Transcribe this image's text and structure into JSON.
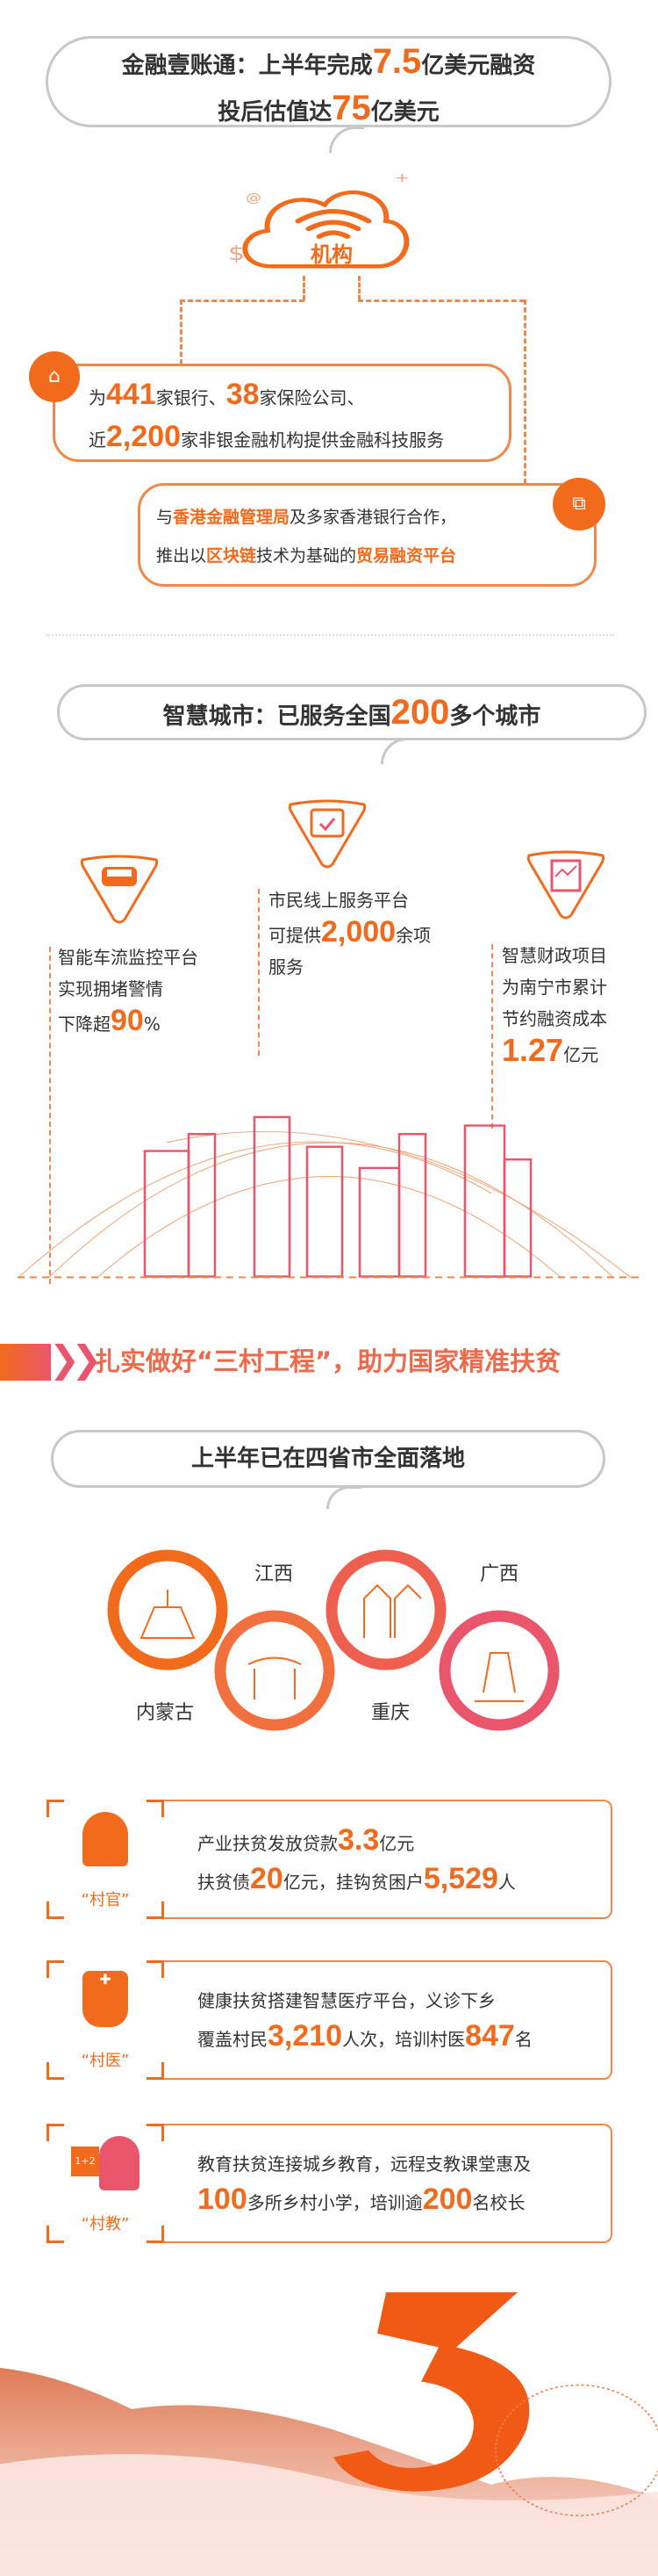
{
  "fintech": {
    "headline": {
      "prefix": "金融壹账通：上半年完成",
      "num1": "7.5",
      "mid": "亿美元融资",
      "line2_prefix": "投后估值达",
      "num2": "75",
      "suffix": "亿美元"
    },
    "cloud_label": "机构",
    "box1": {
      "a": "为",
      "n1": "441",
      "b": "家银行、",
      "n2": "38",
      "c": "家保险公司、",
      "d": "近",
      "n3": "2,200",
      "e": "家非银金融机构提供金融科技服务"
    },
    "box2": {
      "a": "与",
      "h1": "香港金融管理局",
      "b": "及多家香港银行合作，",
      "c": "推出以",
      "h2": "区块链",
      "d": "技术为基础的",
      "h3": "贸易融资平台"
    }
  },
  "smart_city": {
    "headline": {
      "prefix": "智慧城市：已服务全国",
      "num": "200",
      "suffix": "多个城市"
    },
    "items": [
      {
        "icon": "car-icon",
        "l1": "智能车流监控平台",
        "l2": "实现拥堵警情",
        "l3": "下降超",
        "num": "90",
        "unit": "%"
      },
      {
        "icon": "calendar-check-icon",
        "l1": "市民线上服务平台",
        "l2": "可提供",
        "num": "2,000",
        "unit": "余项",
        "l3": "服务"
      },
      {
        "icon": "chart-report-icon",
        "l1": "智慧财政项目",
        "l2": "为南宁市累计",
        "l3": "节约融资成本",
        "num": "1.27",
        "unit": "亿元"
      }
    ]
  },
  "poverty": {
    "banner": "扎实做好“三村工程”，助力国家精准扶贫",
    "headline": "上半年已在四省市全面落地",
    "provinces": [
      "内蒙古",
      "江西",
      "重庆",
      "广西"
    ],
    "cards": [
      {
        "label": "“村官”",
        "icon": "official-icon",
        "l1a": "产业扶贫发放贷款",
        "n1": "3.3",
        "l1b": "亿元",
        "l2a": "扶贫债",
        "n2": "20",
        "l2b": "亿元，挂钩贫困户",
        "n3": "5,529",
        "l2c": "人"
      },
      {
        "label": "“村医”",
        "icon": "doctor-icon",
        "l1a": "健康扶贫搭建智慧医疗平台，义诊下乡",
        "l2a": "覆盖村民",
        "n2": "3,210",
        "l2b": "人次，培训村医",
        "n3": "847",
        "l2c": "名"
      },
      {
        "label": "“村教”",
        "icon": "teacher-icon",
        "board": "1+2",
        "l1a": "教育扶贫连接城乡教育，远程支教课堂惠及",
        "n2": "100",
        "l2b": "多所乡村小学，培训逾",
        "n3": "200",
        "l2c": "名校长"
      }
    ]
  },
  "colors": {
    "accent": "#f26a1b",
    "pink": "#e9566b",
    "gray": "#c8c8c8"
  }
}
